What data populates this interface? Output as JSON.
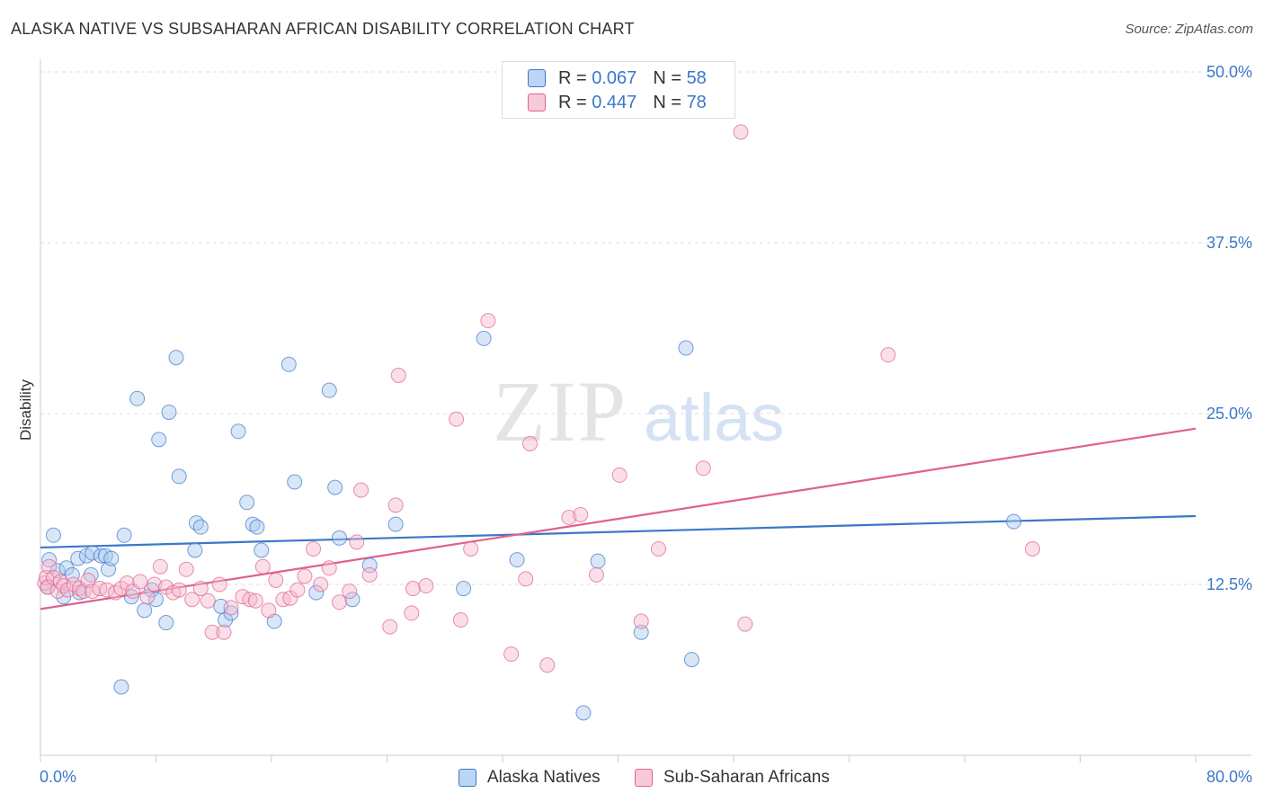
{
  "title": "ALASKA NATIVE VS SUBSAHARAN AFRICAN DISABILITY CORRELATION CHART",
  "source": "Source: ZipAtlas.com",
  "watermark": {
    "zip": "ZIP",
    "atlas": "atlas"
  },
  "legend": {
    "blue": {
      "r_label": "R =",
      "r_value": "0.067",
      "n_label": "N =",
      "n_value": "58"
    },
    "pink": {
      "r_label": "R =",
      "r_value": "0.447",
      "n_label": "N =",
      "n_value": "78"
    }
  },
  "colors": {
    "blue": "#3a78c9",
    "blue_fill": "#a9c8f0",
    "pink": "#e0608f",
    "pink_fill": "#f5b8cc",
    "grid": "#dddddd",
    "tick_label": "#3a78c9"
  },
  "chart_data": {
    "type": "scatter",
    "ylabel": "Disability",
    "xlabel": "",
    "xlim": [
      0,
      80
    ],
    "ylim": [
      0,
      50
    ],
    "x_tick_labels": [
      "0.0%",
      "80.0%"
    ],
    "y_ticks": [
      12.5,
      25.0,
      37.5,
      50.0
    ],
    "y_tick_labels": [
      "12.5%",
      "25.0%",
      "37.5%",
      "50.0%"
    ],
    "grid": true,
    "legend_position": "top-center",
    "series": [
      {
        "name": "Alaska Natives",
        "color": "#3a78c9",
        "trend": {
          "x0": 0,
          "y0": 15.2,
          "x1": 80,
          "y1": 17.5
        },
        "points": [
          [
            0.5,
            12.3
          ],
          [
            0.6,
            14.3
          ],
          [
            0.9,
            16.1
          ],
          [
            1.2,
            13.5
          ],
          [
            1.6,
            11.6
          ],
          [
            1.8,
            13.7
          ],
          [
            2.2,
            13.2
          ],
          [
            2.6,
            14.4
          ],
          [
            2.7,
            11.9
          ],
          [
            3.2,
            14.6
          ],
          [
            3.5,
            13.2
          ],
          [
            3.6,
            14.8
          ],
          [
            4.2,
            14.6
          ],
          [
            4.5,
            14.6
          ],
          [
            4.7,
            13.6
          ],
          [
            4.9,
            14.4
          ],
          [
            5.6,
            5.0
          ],
          [
            5.8,
            16.1
          ],
          [
            6.3,
            11.6
          ],
          [
            6.7,
            26.1
          ],
          [
            7.2,
            10.6
          ],
          [
            7.7,
            12.1
          ],
          [
            8.0,
            11.4
          ],
          [
            8.2,
            23.1
          ],
          [
            8.7,
            9.7
          ],
          [
            8.9,
            25.1
          ],
          [
            9.4,
            29.1
          ],
          [
            9.6,
            20.4
          ],
          [
            10.7,
            15.0
          ],
          [
            10.8,
            17.0
          ],
          [
            11.1,
            16.7
          ],
          [
            12.5,
            10.9
          ],
          [
            12.8,
            9.9
          ],
          [
            13.2,
            10.4
          ],
          [
            13.7,
            23.7
          ],
          [
            14.3,
            18.5
          ],
          [
            14.7,
            16.9
          ],
          [
            15.0,
            16.7
          ],
          [
            15.3,
            15.0
          ],
          [
            16.2,
            9.8
          ],
          [
            17.2,
            28.6
          ],
          [
            17.6,
            20.0
          ],
          [
            19.1,
            11.9
          ],
          [
            20.0,
            26.7
          ],
          [
            20.4,
            19.6
          ],
          [
            20.7,
            15.9
          ],
          [
            21.6,
            11.4
          ],
          [
            22.8,
            13.9
          ],
          [
            24.6,
            16.9
          ],
          [
            29.3,
            12.2
          ],
          [
            30.7,
            30.5
          ],
          [
            33.0,
            14.3
          ],
          [
            37.6,
            3.1
          ],
          [
            38.6,
            14.2
          ],
          [
            41.6,
            9.0
          ],
          [
            44.7,
            29.8
          ],
          [
            45.1,
            7.0
          ],
          [
            67.4,
            17.1
          ]
        ]
      },
      {
        "name": "Sub-Saharan Africans",
        "color": "#e0608f",
        "trend": {
          "x0": 0,
          "y0": 10.7,
          "x1": 80,
          "y1": 23.9
        },
        "points": [
          [
            0.3,
            12.6
          ],
          [
            0.4,
            13.0
          ],
          [
            0.5,
            12.3
          ],
          [
            0.6,
            13.8
          ],
          [
            0.9,
            13.0
          ],
          [
            1.2,
            12.0
          ],
          [
            1.4,
            12.7
          ],
          [
            1.6,
            12.4
          ],
          [
            1.9,
            12.1
          ],
          [
            2.3,
            12.5
          ],
          [
            2.7,
            12.2
          ],
          [
            3.0,
            12.0
          ],
          [
            3.3,
            12.8
          ],
          [
            3.6,
            12.0
          ],
          [
            4.1,
            12.2
          ],
          [
            4.6,
            12.1
          ],
          [
            5.2,
            11.9
          ],
          [
            5.6,
            12.2
          ],
          [
            6.0,
            12.6
          ],
          [
            6.4,
            12.0
          ],
          [
            6.9,
            12.7
          ],
          [
            7.4,
            11.6
          ],
          [
            7.9,
            12.5
          ],
          [
            8.3,
            13.8
          ],
          [
            8.7,
            12.3
          ],
          [
            9.2,
            11.9
          ],
          [
            9.6,
            12.1
          ],
          [
            10.1,
            13.6
          ],
          [
            10.5,
            11.4
          ],
          [
            11.1,
            12.2
          ],
          [
            11.6,
            11.3
          ],
          [
            11.9,
            9.0
          ],
          [
            12.4,
            12.5
          ],
          [
            12.7,
            9.0
          ],
          [
            13.2,
            10.8
          ],
          [
            14.0,
            11.6
          ],
          [
            14.5,
            11.4
          ],
          [
            14.9,
            11.3
          ],
          [
            15.4,
            13.8
          ],
          [
            15.8,
            10.6
          ],
          [
            16.3,
            12.8
          ],
          [
            16.8,
            11.4
          ],
          [
            17.3,
            11.5
          ],
          [
            17.8,
            12.1
          ],
          [
            18.3,
            13.1
          ],
          [
            18.9,
            15.1
          ],
          [
            19.4,
            12.5
          ],
          [
            20.0,
            13.7
          ],
          [
            20.7,
            11.2
          ],
          [
            21.4,
            12.0
          ],
          [
            21.9,
            15.6
          ],
          [
            22.2,
            19.4
          ],
          [
            22.8,
            13.2
          ],
          [
            24.2,
            9.4
          ],
          [
            24.6,
            18.3
          ],
          [
            24.8,
            27.8
          ],
          [
            25.7,
            10.4
          ],
          [
            25.8,
            12.2
          ],
          [
            26.7,
            12.4
          ],
          [
            28.8,
            24.6
          ],
          [
            29.1,
            9.9
          ],
          [
            29.8,
            15.1
          ],
          [
            31.0,
            31.8
          ],
          [
            32.6,
            7.4
          ],
          [
            33.6,
            12.9
          ],
          [
            33.9,
            22.8
          ],
          [
            35.1,
            6.6
          ],
          [
            36.6,
            17.4
          ],
          [
            37.4,
            17.6
          ],
          [
            38.5,
            13.2
          ],
          [
            40.1,
            20.5
          ],
          [
            41.6,
            9.8
          ],
          [
            42.8,
            15.1
          ],
          [
            45.9,
            21.0
          ],
          [
            48.5,
            45.6
          ],
          [
            48.8,
            9.6
          ],
          [
            58.7,
            29.3
          ],
          [
            68.7,
            15.1
          ]
        ]
      }
    ]
  },
  "bottom_legend": {
    "blue_label": "Alaska Natives",
    "pink_label": "Sub-Saharan Africans"
  }
}
